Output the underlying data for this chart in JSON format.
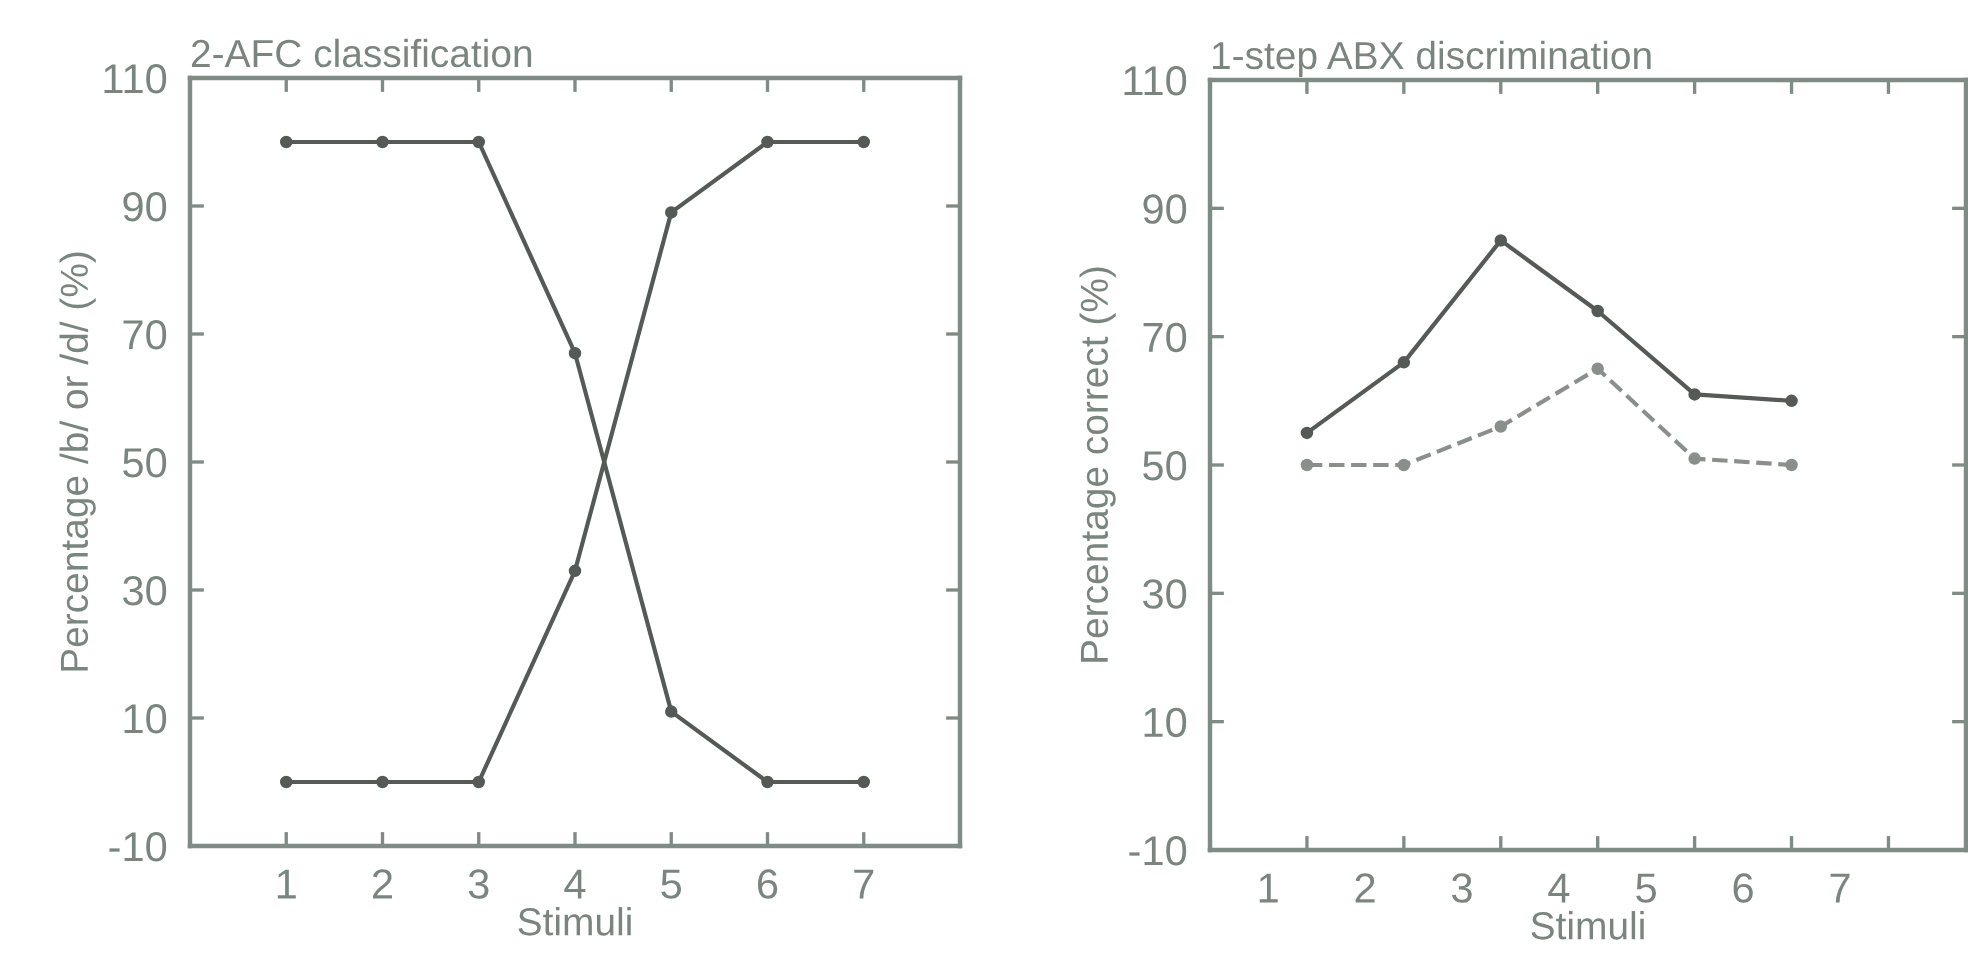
{
  "chart_data": [
    {
      "type": "line",
      "title": "2-AFC classification",
      "xlabel": "Stimuli",
      "ylabel": "Percentage /b/ or /d/ (%)",
      "x": [
        1,
        2,
        3,
        4,
        5,
        6,
        7
      ],
      "xlim": [
        0,
        8
      ],
      "xticks": [
        1,
        2,
        3,
        4,
        5,
        6,
        7
      ],
      "ylim": [
        -10,
        110
      ],
      "yticks": [
        -10,
        10,
        30,
        50,
        70,
        90,
        110
      ],
      "marker": "circle",
      "grid": false,
      "legend": false,
      "series": [
        {
          "color": "#555a57",
          "values": [
            100,
            100,
            100,
            67,
            11,
            0,
            0
          ],
          "line_style": "solid"
        },
        {
          "color": "#555a57",
          "values": [
            0,
            0,
            0,
            33,
            89,
            100,
            100
          ],
          "line_style": "solid"
        }
      ]
    },
    {
      "type": "line",
      "title": "1-step ABX discrimination",
      "xlabel": "Stimuli",
      "ylabel": "Percentage correct (%)",
      "x": [
        1,
        2,
        3,
        4,
        5,
        6
      ],
      "xlim": [
        0,
        7.8
      ],
      "xticks": [
        {
          "value": 0.6,
          "label": "1"
        },
        {
          "value": 1.6,
          "label": "2"
        },
        {
          "value": 2.6,
          "label": "3"
        },
        {
          "value": 3.6,
          "label": "4"
        },
        {
          "value": 4.5,
          "label": "5"
        },
        {
          "value": 5.5,
          "label": "6"
        },
        {
          "value": 6.5,
          "label": "7"
        },
        {
          "value": 1,
          "label": null
        },
        {
          "value": 2,
          "label": null
        },
        {
          "value": 3,
          "label": null
        },
        {
          "value": 4,
          "label": null
        },
        {
          "value": 5,
          "label": null
        },
        {
          "value": 6,
          "label": null
        },
        {
          "value": 7,
          "label": null
        }
      ],
      "ylim": [
        -10,
        110
      ],
      "yticks": [
        -10,
        10,
        30,
        50,
        70,
        90,
        110
      ],
      "marker": "circle",
      "grid": false,
      "legend": false,
      "series": [
        {
          "color": "#555a57",
          "values": [
            55,
            66,
            85,
            74,
            61,
            60
          ],
          "line_style": "solid"
        },
        {
          "color": "#8a8f8c",
          "values": [
            50,
            50,
            56,
            65,
            51,
            50
          ],
          "line_style": "dashed"
        }
      ]
    }
  ]
}
